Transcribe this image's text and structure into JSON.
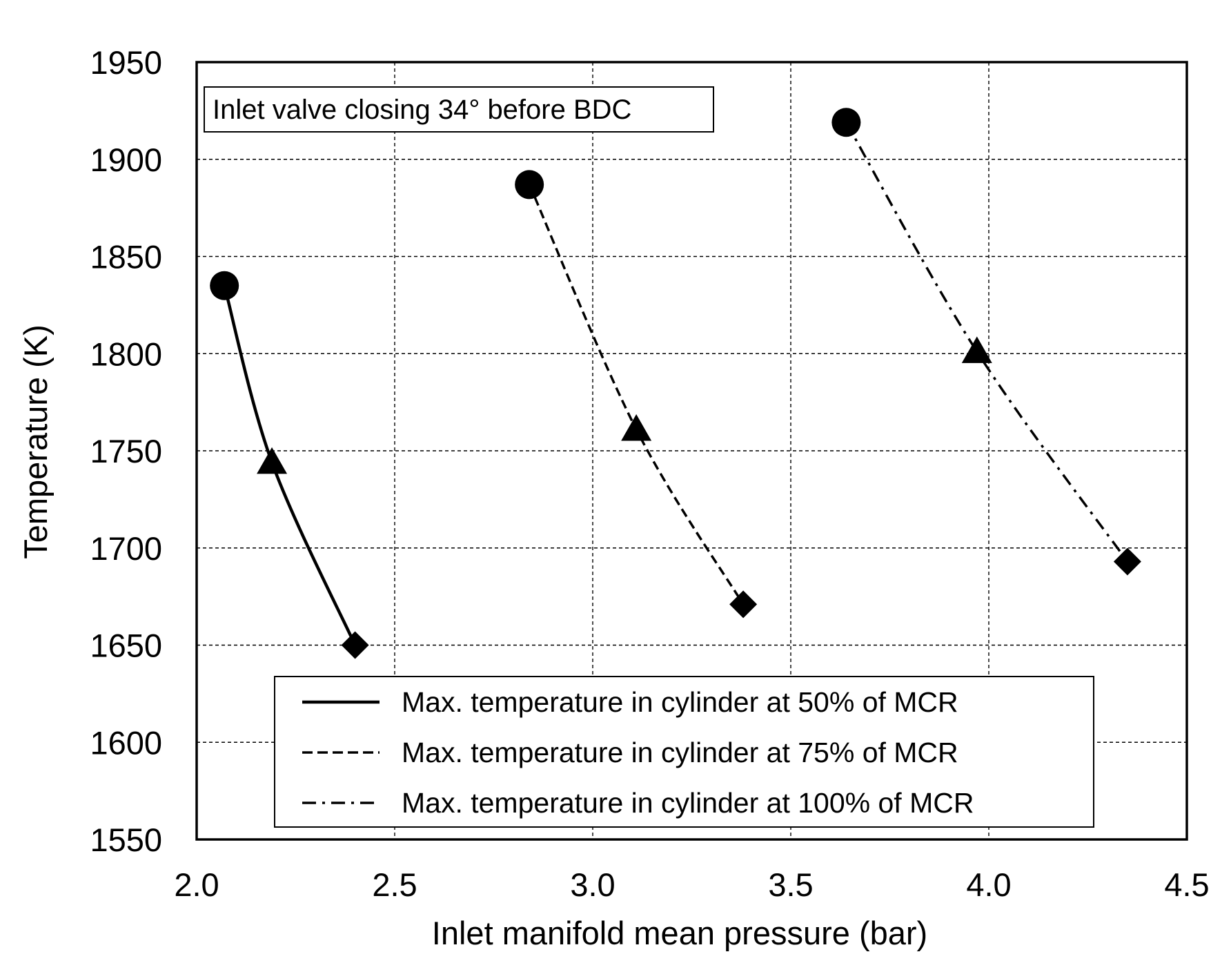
{
  "chart_data": {
    "type": "line",
    "title": "",
    "annotation": "Inlet valve closing 34° before BDC",
    "xlabel": "Inlet manifold mean pressure (bar)",
    "ylabel": "Temperature (K)",
    "xlim": [
      2.0,
      4.5
    ],
    "ylim": [
      1550,
      1950
    ],
    "xticks": [
      2.0,
      2.5,
      3.0,
      3.5,
      4.0,
      4.5
    ],
    "xtick_labels": [
      "2.0",
      "2.5",
      "3.0",
      "3.5",
      "4.0",
      "4.5"
    ],
    "yticks": [
      1550,
      1600,
      1650,
      1700,
      1750,
      1800,
      1850,
      1900,
      1950
    ],
    "ytick_labels": [
      "1550",
      "1600",
      "1650",
      "1700",
      "1750",
      "1800",
      "1850",
      "1900",
      "1950"
    ],
    "grid": true,
    "legend_position": "bottom-right",
    "series": [
      {
        "name": "Max. temperature in cylinder at 50% of MCR",
        "line_style": "solid",
        "x": [
          2.07,
          2.19,
          2.4
        ],
        "y": [
          1835,
          1744,
          1650
        ],
        "markers": [
          "circle",
          "triangle",
          "diamond"
        ]
      },
      {
        "name": "Max. temperature in cylinder at 75% of MCR",
        "line_style": "dashed",
        "x": [
          2.84,
          3.11,
          3.38
        ],
        "y": [
          1887,
          1761,
          1671
        ],
        "markers": [
          "circle",
          "triangle",
          "diamond"
        ]
      },
      {
        "name": "Max. temperature in cylinder at 100% of MCR",
        "line_style": "dashdot",
        "x": [
          3.64,
          3.97,
          4.35
        ],
        "y": [
          1919,
          1801,
          1693
        ],
        "markers": [
          "circle",
          "triangle",
          "diamond"
        ]
      }
    ]
  }
}
